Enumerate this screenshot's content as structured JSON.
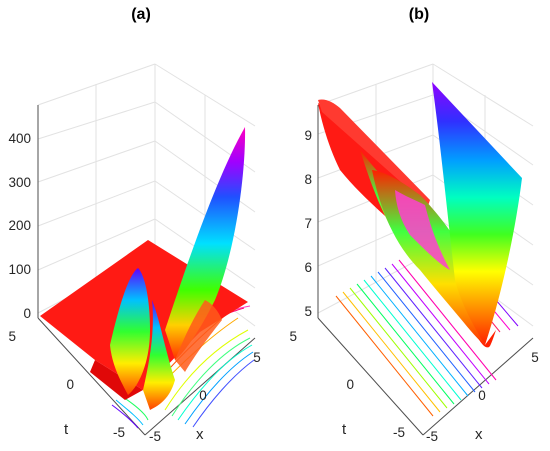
{
  "chart_data": [
    {
      "type": "surface",
      "title": "(a)",
      "xlabel": "x",
      "ylabel": "t",
      "zlabel": "",
      "xlim": [
        -5,
        5
      ],
      "ylim": [
        -5,
        5
      ],
      "zlim": [
        0,
        450
      ],
      "x_ticks": [
        "-5",
        "0",
        "5"
      ],
      "y_ticks": [
        "-5",
        "0",
        "5"
      ],
      "z_ticks": [
        "0",
        "100",
        "200",
        "300",
        "400"
      ],
      "contour_projection": true,
      "grid": true,
      "colormap": "hsv"
    },
    {
      "type": "surface",
      "title": "(b)",
      "xlabel": "x",
      "ylabel": "t",
      "zlabel": "",
      "xlim": [
        -5,
        5
      ],
      "ylim": [
        -5,
        5
      ],
      "zlim": [
        5,
        9.5
      ],
      "x_ticks": [
        "-5",
        "0",
        "5"
      ],
      "y_ticks": [
        "-5",
        "0",
        "5"
      ],
      "z_ticks": [
        "5",
        "6",
        "7",
        "8",
        "9"
      ],
      "contour_projection": true,
      "grid": true,
      "colormap": "hsv"
    }
  ]
}
